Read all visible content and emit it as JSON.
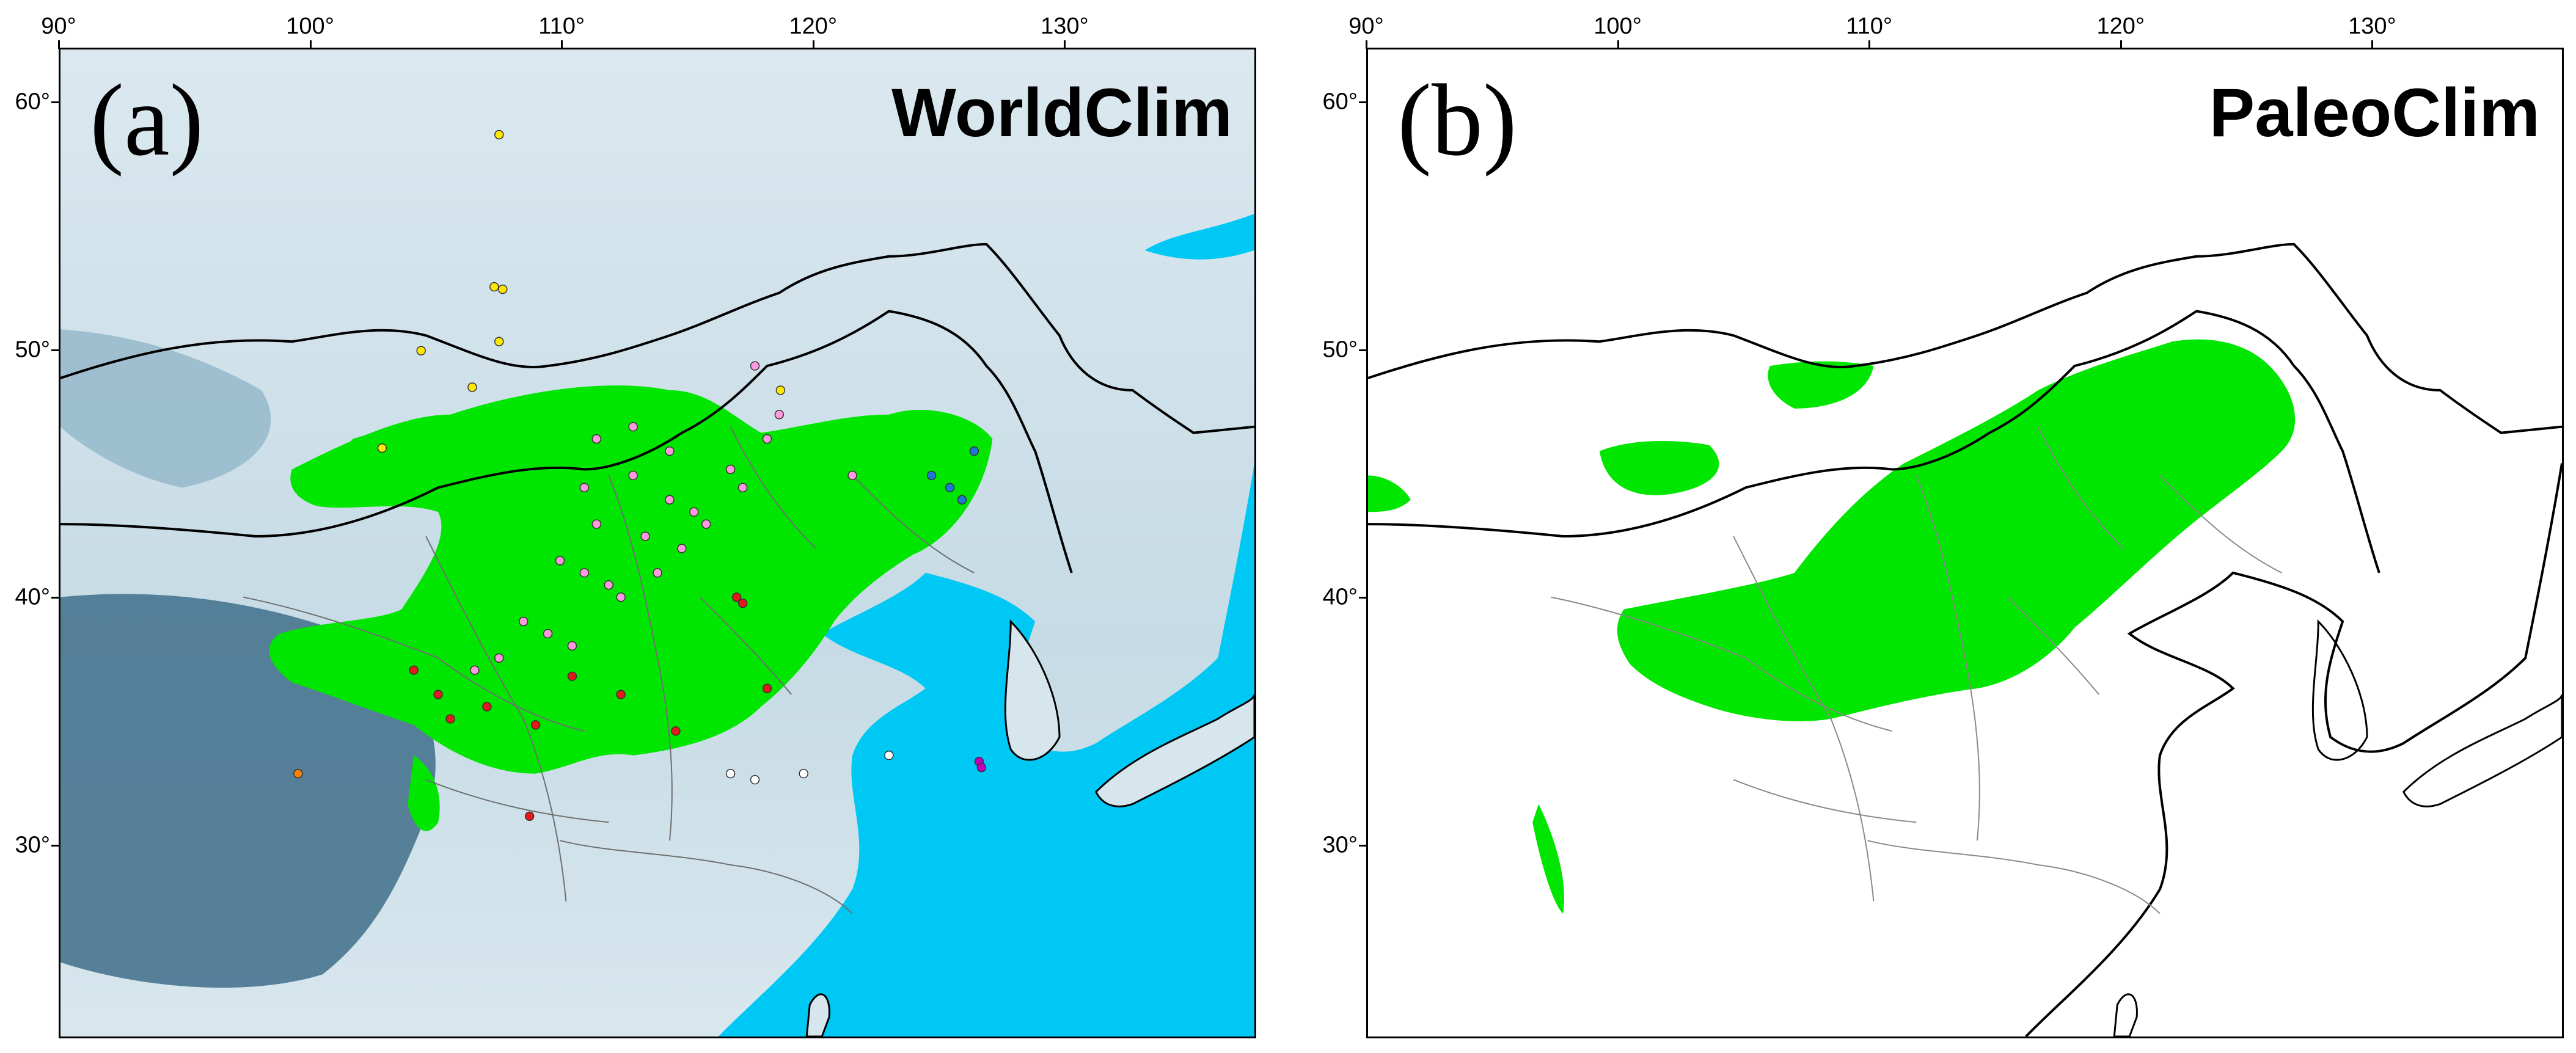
{
  "figure": {
    "panels": [
      {
        "id": "a",
        "letter": "(a)",
        "title": "WorldClim"
      },
      {
        "id": "b",
        "letter": "(b)",
        "title": "PaleoClim"
      }
    ],
    "x_ticks": [
      "90°",
      "100°",
      "110°",
      "120°",
      "130°"
    ],
    "y_ticks": [
      "60°",
      "50°",
      "40°",
      "30°"
    ]
  },
  "colors": {
    "suitable_area": "#00e600",
    "sea": "#00c8f5",
    "background_a": "#cfe2ea",
    "background_b": "#ffffff",
    "border": "#000000",
    "province_border": "#888888"
  },
  "occurrence_colors": [
    "#ffe800",
    "#ff99dd",
    "#e31a1c",
    "#1f78d4",
    "#ffffff",
    "#ff7f00",
    "#c000c0"
  ],
  "legend": []
}
